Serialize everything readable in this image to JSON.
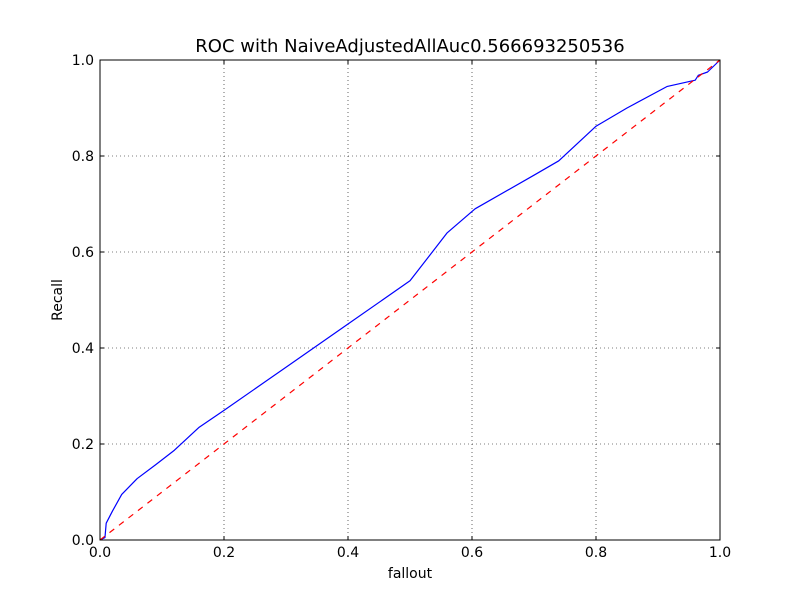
{
  "chart_data": {
    "type": "line",
    "title": "ROC with NaiveAdjustedAllAuc0.566693250536",
    "xlabel": "fallout",
    "ylabel": "Recall",
    "xlim": [
      0.0,
      1.0
    ],
    "ylim": [
      0.0,
      1.0
    ],
    "xticks": [
      "0.0",
      "0.2",
      "0.4",
      "0.6",
      "0.8",
      "1.0"
    ],
    "yticks": [
      "0.0",
      "0.2",
      "0.4",
      "0.6",
      "0.8",
      "1.0"
    ],
    "grid": true,
    "series": [
      {
        "style": "solid",
        "color": "#0000ff",
        "x": [
          0.0,
          0.008,
          0.01,
          0.02,
          0.035,
          0.06,
          0.09,
          0.12,
          0.16,
          0.2,
          0.3,
          0.4,
          0.5,
          0.56,
          0.605,
          0.7,
          0.74,
          0.8,
          0.85,
          0.915,
          0.96,
          0.965,
          0.98,
          1.0
        ],
        "y": [
          0.0,
          0.005,
          0.035,
          0.06,
          0.095,
          0.128,
          0.157,
          0.187,
          0.235,
          0.27,
          0.36,
          0.45,
          0.54,
          0.64,
          0.69,
          0.76,
          0.79,
          0.862,
          0.9,
          0.945,
          0.958,
          0.968,
          0.975,
          1.0
        ]
      },
      {
        "style": "dashed",
        "color": "#ff0000",
        "x": [
          0.0,
          1.0
        ],
        "y": [
          0.0,
          1.0
        ]
      }
    ]
  }
}
